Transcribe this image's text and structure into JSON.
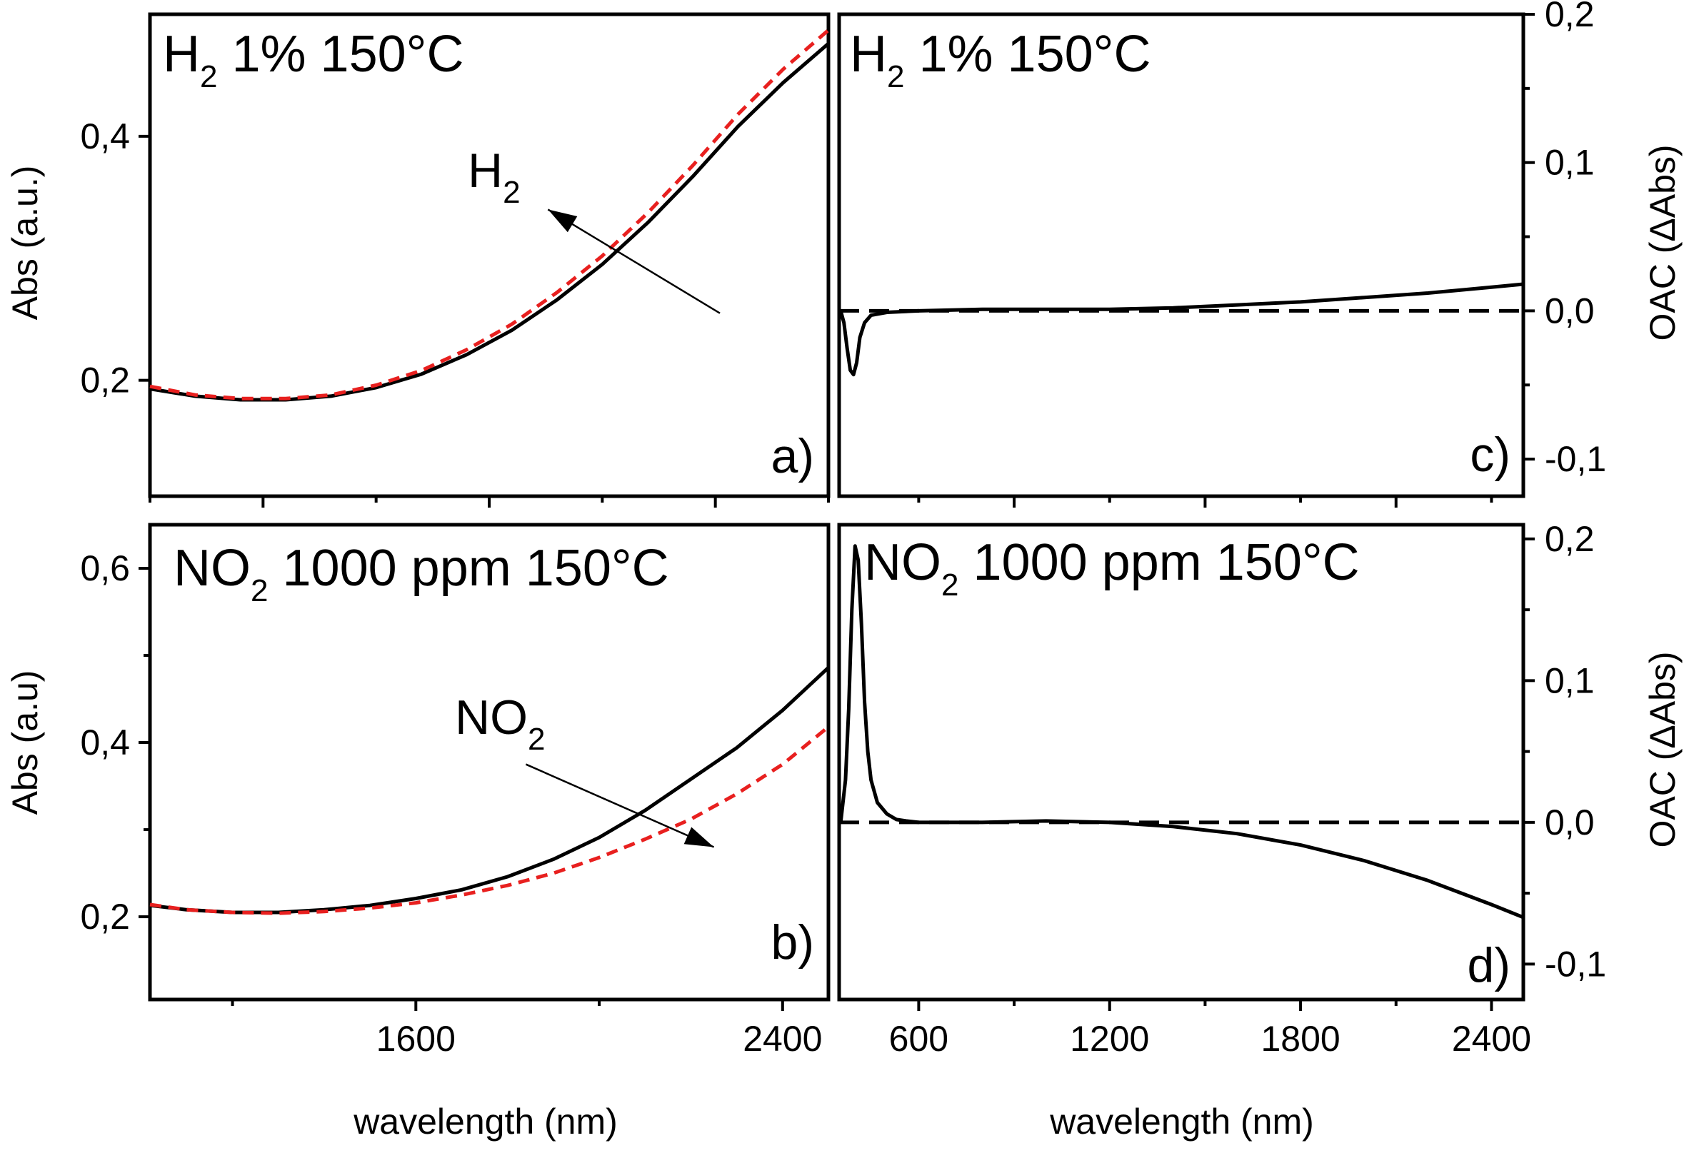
{
  "chart_data": [
    {
      "panel": "a",
      "type": "line",
      "title": "H",
      "title_sub": "2",
      "title_rest": " 1% 150°C",
      "panel_label": "a)",
      "ylabel": "Abs (a.u.)",
      "xlim": [
        1000,
        2500
      ],
      "ylim": [
        0.105,
        0.5
      ],
      "yticks": [
        0.2,
        0.4
      ],
      "ytick_labels": [
        "0,2",
        "0,4"
      ],
      "xticks_major": [
        1250,
        1750,
        2250
      ],
      "xticks_minor": [
        1000,
        1500,
        2000,
        2500
      ],
      "annotation": {
        "text": "H",
        "sub": "2",
        "from": [
          2260,
          0.255
        ],
        "to": [
          1880,
          0.34
        ],
        "text_at": [
          1720,
          0.37
        ]
      },
      "series": [
        {
          "color": "#000000",
          "dashed": false,
          "x": [
            1000,
            1100,
            1200,
            1300,
            1400,
            1500,
            1600,
            1700,
            1800,
            1900,
            2000,
            2100,
            2200,
            2300,
            2400,
            2500
          ],
          "y": [
            0.193,
            0.187,
            0.184,
            0.184,
            0.187,
            0.194,
            0.205,
            0.221,
            0.241,
            0.266,
            0.295,
            0.329,
            0.367,
            0.408,
            0.444,
            0.476
          ]
        },
        {
          "color": "#e8201f",
          "dashed": true,
          "x": [
            1000,
            1100,
            1200,
            1300,
            1400,
            1500,
            1600,
            1700,
            1800,
            1900,
            2000,
            2100,
            2200,
            2300,
            2400,
            2500
          ],
          "y": [
            0.195,
            0.188,
            0.185,
            0.185,
            0.188,
            0.196,
            0.208,
            0.225,
            0.246,
            0.272,
            0.302,
            0.337,
            0.376,
            0.418,
            0.455,
            0.487
          ]
        }
      ]
    },
    {
      "panel": "b",
      "type": "line",
      "title": "NO",
      "title_sub": "2",
      "title_rest": " 1000 ppm 150°C",
      "panel_label": "b)",
      "ylabel": "Abs (a.u)",
      "xlabel": "wavelength (nm)",
      "xlim": [
        1020,
        2500
      ],
      "ylim": [
        0.105,
        0.65
      ],
      "yticks": [
        0.2,
        0.4,
        0.6
      ],
      "ytick_labels": [
        "0,2",
        "0,4",
        "0,6"
      ],
      "ytick_minor": [
        0.3,
        0.5
      ],
      "xticks": [
        1600,
        2400
      ],
      "xtick_labels": [
        "1600",
        "2400"
      ],
      "xticks_minor": [
        1200,
        2000
      ],
      "annotation": {
        "text": "NO",
        "sub": "2",
        "from": [
          1840,
          0.375
        ],
        "to": [
          2250,
          0.28
        ],
        "text_at": [
          1660,
          0.41
        ]
      },
      "series": [
        {
          "color": "#000000",
          "dashed": false,
          "x": [
            1020,
            1100,
            1200,
            1300,
            1400,
            1500,
            1600,
            1700,
            1800,
            1900,
            2000,
            2100,
            2200,
            2300,
            2400,
            2500
          ],
          "y": [
            0.213,
            0.208,
            0.205,
            0.205,
            0.208,
            0.213,
            0.221,
            0.231,
            0.246,
            0.266,
            0.291,
            0.322,
            0.358,
            0.394,
            0.437,
            0.486
          ]
        },
        {
          "color": "#e8201f",
          "dashed": true,
          "x": [
            1020,
            1100,
            1200,
            1300,
            1400,
            1500,
            1600,
            1700,
            1800,
            1900,
            2000,
            2100,
            2200,
            2300,
            2400,
            2500
          ],
          "y": [
            0.214,
            0.208,
            0.205,
            0.204,
            0.206,
            0.21,
            0.216,
            0.225,
            0.236,
            0.25,
            0.268,
            0.289,
            0.312,
            0.341,
            0.375,
            0.418
          ]
        }
      ]
    },
    {
      "panel": "c",
      "type": "line",
      "title": "H",
      "title_sub": "2",
      "title_rest": " 1% 150°C",
      "panel_label": "c)",
      "ylabel": "OAC (ΔAbs)",
      "xlim": [
        350,
        2500
      ],
      "ylim": [
        -0.125,
        0.2
      ],
      "yticks": [
        -0.1,
        0.0,
        0.1,
        0.2
      ],
      "ytick_labels": [
        "-0,1",
        "0,0",
        "0,1",
        "0,2"
      ],
      "ytick_minor": [
        -0.05,
        0.05,
        0.15
      ],
      "xticks_major": [
        900,
        1500,
        2100
      ],
      "xticks_minor": [
        600,
        1200,
        1800,
        2400
      ],
      "series": [
        {
          "color": "#000000",
          "dashed": false,
          "x": [
            355,
            365,
            375,
            385,
            395,
            405,
            415,
            430,
            450,
            500,
            600,
            800,
            1000,
            1200,
            1400,
            1600,
            1800,
            2000,
            2200,
            2400,
            2500
          ],
          "y": [
            0.0,
            -0.008,
            -0.025,
            -0.04,
            -0.043,
            -0.035,
            -0.018,
            -0.008,
            -0.003,
            -0.001,
            0.0,
            0.001,
            0.001,
            0.001,
            0.002,
            0.004,
            0.006,
            0.009,
            0.012,
            0.016,
            0.018
          ]
        },
        {
          "color": "#000000",
          "dashed": true,
          "x": [
            350,
            2500
          ],
          "y": [
            0.0,
            0.0
          ]
        }
      ]
    },
    {
      "panel": "d",
      "type": "line",
      "title": "NO",
      "title_sub": "2",
      "title_rest": " 1000 ppm 150°C",
      "panel_label": "d)",
      "ylabel": "OAC (ΔAbs)",
      "xlabel": "wavelength (nm)",
      "xlim": [
        350,
        2500
      ],
      "ylim": [
        -0.125,
        0.21
      ],
      "yticks": [
        -0.1,
        0.0,
        0.1,
        0.2
      ],
      "ytick_labels": [
        "-0,1",
        "0,0",
        "0,1",
        "0,2"
      ],
      "ytick_minor": [
        -0.05,
        0.05,
        0.15
      ],
      "xticks": [
        600,
        1200,
        1800,
        2400
      ],
      "xtick_labels": [
        "600",
        "1200",
        "1800",
        "2400"
      ],
      "xticks_minor": [
        900,
        1500,
        2100
      ],
      "series": [
        {
          "color": "#000000",
          "dashed": false,
          "x": [
            355,
            370,
            380,
            390,
            400,
            410,
            420,
            430,
            440,
            450,
            470,
            500,
            530,
            560,
            600,
            700,
            800,
            1000,
            1200,
            1400,
            1600,
            1800,
            2000,
            2200,
            2400,
            2500
          ],
          "y": [
            0.0,
            0.03,
            0.08,
            0.15,
            0.195,
            0.185,
            0.14,
            0.085,
            0.05,
            0.03,
            0.014,
            0.006,
            0.002,
            0.001,
            0.0,
            0.0,
            0.0,
            0.001,
            0.0,
            -0.003,
            -0.008,
            -0.016,
            -0.027,
            -0.041,
            -0.058,
            -0.067
          ]
        },
        {
          "color": "#000000",
          "dashed": true,
          "x": [
            350,
            2500
          ],
          "y": [
            0.0,
            0.0
          ]
        }
      ]
    }
  ]
}
